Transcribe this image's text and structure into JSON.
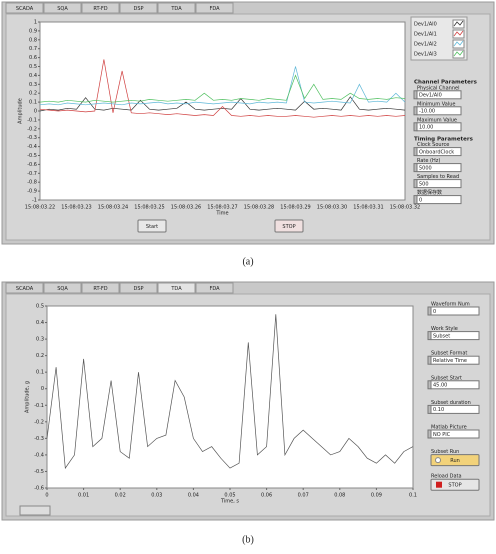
{
  "tabs": [
    "SCADA",
    "SQA",
    "RT-FD",
    "DSP",
    "TDA",
    "FDA"
  ],
  "captions": [
    "(a)",
    "(b)"
  ],
  "buttons_a": [
    "Start",
    "STOP"
  ],
  "chart_data": [
    {
      "type": "line",
      "y_label": "Amplitude",
      "x_label": "Time",
      "x_labels": [
        "15:08:03.22",
        "15:08:03.23",
        "15:08:03.24",
        "15:08:03.25",
        "15:08:03.26",
        "15:08:03.27",
        "15:08:03.28",
        "15:08:03.29",
        "15:08:03.30",
        "15:08:03.31",
        "15:08:03.32"
      ],
      "ylim": [
        -1,
        1
      ],
      "yticks": [
        1,
        0.9,
        0.8,
        0.7,
        0.6,
        0.5,
        0.4,
        0.3,
        0.2,
        0.1,
        0,
        -0.1,
        -0.2,
        -0.3,
        -0.4,
        -0.5,
        -0.6,
        -0.7,
        -0.8,
        -0.9,
        -1
      ],
      "series": [
        {
          "name": "Dev1/AI0",
          "color": "#333333",
          "values": [
            0,
            0.02,
            0.01,
            0.03,
            0.02,
            0.15,
            0.02,
            0.01,
            0.03,
            0.02,
            0.01,
            0.12,
            0.02,
            0.01,
            0.02,
            0.03,
            0.1,
            0.02,
            0.01,
            0.02,
            0.03,
            0.02,
            0.14,
            0.02,
            0.01,
            0.02,
            0.03,
            0.02,
            0.01,
            0.11,
            0.02,
            0.03,
            0.02,
            0.01,
            0.16,
            0.02,
            0.01,
            0.02,
            0.03,
            0.02,
            0.01
          ]
        },
        {
          "name": "Dev1/AI1",
          "color": "#d04040",
          "values": [
            0.02,
            0.01,
            0,
            0.01,
            0,
            -0.01,
            0,
            0.58,
            -0.02,
            0.45,
            -0.02,
            -0.03,
            -0.02,
            -0.03,
            -0.04,
            -0.03,
            -0.04,
            -0.05,
            -0.04,
            -0.05,
            0.05,
            -0.05,
            -0.06,
            -0.05,
            -0.06,
            -0.05,
            -0.06,
            -0.06,
            -0.05,
            -0.06,
            -0.07,
            -0.06,
            -0.05,
            -0.06,
            -0.05,
            -0.06,
            -0.05,
            -0.06,
            -0.05,
            -0.06,
            -0.05
          ]
        },
        {
          "name": "Dev1/AI2",
          "color": "#5fb8d8",
          "values": [
            0.07,
            0.08,
            0.07,
            0.09,
            0.08,
            0.07,
            0.08,
            0.09,
            0.08,
            0.07,
            0.09,
            0.08,
            0.09,
            0.1,
            0.08,
            0.09,
            0.08,
            0.1,
            0.09,
            0.08,
            0.09,
            0.1,
            0.09,
            0.08,
            0.1,
            0.09,
            0.1,
            0.09,
            0.5,
            0.1,
            0.09,
            0.1,
            0.11,
            0.1,
            0.09,
            0.3,
            0.1,
            0.11,
            0.1,
            0.2,
            0.1
          ]
        },
        {
          "name": "Dev1/AI3",
          "color": "#50c060",
          "values": [
            0.1,
            0.11,
            0.1,
            0.12,
            0.11,
            0.1,
            0.12,
            0.11,
            0.1,
            0.11,
            0.12,
            0.11,
            0.13,
            0.12,
            0.11,
            0.12,
            0.13,
            0.12,
            0.2,
            0.12,
            0.13,
            0.12,
            0.14,
            0.13,
            0.12,
            0.14,
            0.13,
            0.12,
            0.4,
            0.14,
            0.3,
            0.13,
            0.14,
            0.13,
            0.2,
            0.14,
            0.13,
            0.14,
            0.13,
            0.15,
            0.14
          ]
        }
      ]
    },
    {
      "type": "line",
      "y_label": "Amplitude, g",
      "x_label": "Time, s",
      "xlim": [
        0,
        0.1
      ],
      "xticks": [
        0,
        0.01,
        0.02,
        0.03,
        0.04,
        0.05,
        0.06,
        0.07,
        0.08,
        0.09,
        0.1
      ],
      "ylim": [
        -0.6,
        0.5
      ],
      "yticks": [
        0.5,
        0.4,
        0.3,
        0.2,
        0.1,
        0,
        -0.1,
        -0.2,
        -0.3,
        -0.4,
        -0.5,
        -0.6
      ],
      "x": [
        0,
        0.0025,
        0.005,
        0.0075,
        0.01,
        0.0125,
        0.015,
        0.0175,
        0.02,
        0.0225,
        0.025,
        0.0275,
        0.03,
        0.0325,
        0.035,
        0.0375,
        0.04,
        0.0425,
        0.045,
        0.0475,
        0.05,
        0.0525,
        0.055,
        0.0575,
        0.06,
        0.0625,
        0.065,
        0.0675,
        0.07,
        0.0725,
        0.075,
        0.0775,
        0.08,
        0.0825,
        0.085,
        0.0875,
        0.09,
        0.0925,
        0.095,
        0.0975,
        0.1
      ],
      "series": [
        {
          "color": "#555555",
          "values": [
            -0.3,
            0.13,
            -0.48,
            -0.4,
            0.18,
            -0.35,
            -0.3,
            0.05,
            -0.38,
            -0.42,
            0.1,
            -0.35,
            -0.3,
            -0.28,
            0.05,
            -0.05,
            -0.3,
            -0.38,
            -0.35,
            -0.42,
            -0.48,
            -0.45,
            0.28,
            -0.4,
            -0.35,
            0.45,
            -0.4,
            -0.3,
            -0.25,
            -0.3,
            -0.35,
            -0.4,
            -0.38,
            -0.3,
            -0.35,
            -0.42,
            -0.45,
            -0.4,
            -0.45,
            -0.38,
            -0.35
          ]
        }
      ]
    }
  ],
  "controls_a": [
    {
      "heading": "Channel Parameters"
    },
    {
      "label": "Physical Channel",
      "value": "Dev1/AI0"
    },
    {
      "label": "Minimum Value",
      "value": "-10.00"
    },
    {
      "label": "Maximum Value",
      "value": "10.00"
    },
    {
      "heading": "Timing Parameters"
    },
    {
      "label": "Clock Source",
      "value": "OnboardClock"
    },
    {
      "label": "Rate (Hz)",
      "value": "5000"
    },
    {
      "label": "Samples to Read",
      "value": "500"
    },
    {
      "label": "数据保存数",
      "value": "0"
    }
  ],
  "controls_b": [
    {
      "label": "Waveform Num",
      "value": "0"
    },
    {
      "label": "Work Style",
      "value": "Subset"
    },
    {
      "label": "Subset Format",
      "value": "Relative Time"
    },
    {
      "label": "Subset Start",
      "value": "45.00"
    },
    {
      "label": "Subset duration",
      "value": "0.10"
    },
    {
      "label": "Matlab Picture",
      "value": "NO PIC"
    },
    {
      "label": "Subset Run",
      "button": "Run"
    },
    {
      "label": "Reload Data",
      "button": "STOP"
    }
  ]
}
